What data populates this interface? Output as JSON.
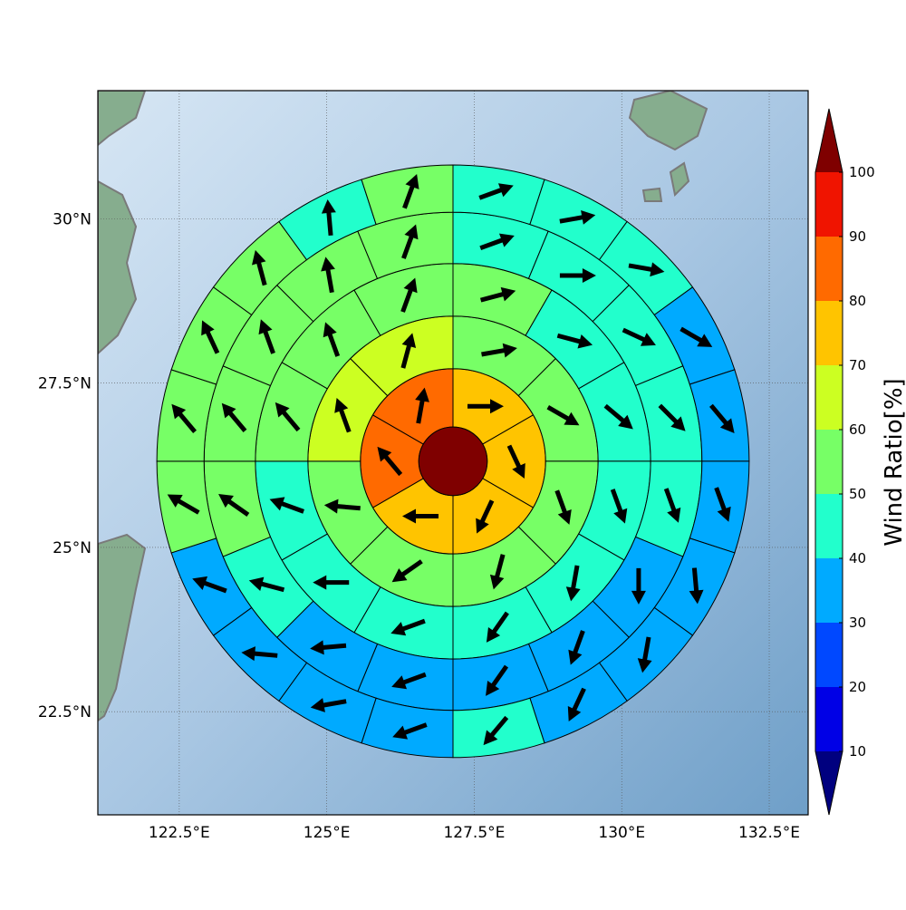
{
  "chart_data": {
    "type": "polar-sector-map",
    "colorbar_label": "Wind Ratio[%]",
    "levels": [
      10,
      20,
      30,
      40,
      50,
      60,
      70,
      80,
      90,
      100
    ],
    "level_colors": [
      "#00007f",
      "#0000e6",
      "#0048ff",
      "#00aaff",
      "#22ffcc",
      "#77ff66",
      "#ccff22",
      "#ffc400",
      "#ff6a00",
      "#f01400",
      "#7f0000"
    ],
    "xlim": [
      121.12,
      133.16
    ],
    "ylim": [
      20.93,
      31.95
    ],
    "xticks": [
      {
        "value": 122.5,
        "label": "122.5°E"
      },
      {
        "value": 125,
        "label": "125°E"
      },
      {
        "value": 127.5,
        "label": "127.5°E"
      },
      {
        "value": 130,
        "label": "130°E"
      },
      {
        "value": 132.5,
        "label": "132.5°E"
      }
    ],
    "yticks": [
      {
        "value": 22.5,
        "label": "22.5°N"
      },
      {
        "value": 25,
        "label": "25°N"
      },
      {
        "value": 27.5,
        "label": "27.5°N"
      },
      {
        "value": 30,
        "label": "30°N"
      }
    ],
    "grid": true,
    "center": {
      "lon": 127.14,
      "lat": 26.31,
      "radius": 0.58,
      "value": 105
    },
    "rings": [
      {
        "outer_radius": 1.57,
        "values": [
          75,
          75,
          75,
          75,
          85,
          85
        ],
        "directions": [
          90,
          155,
          205,
          270,
          320,
          10
        ]
      },
      {
        "outer_radius": 2.46,
        "values": [
          55,
          55,
          55,
          55,
          55,
          55,
          65,
          65
        ],
        "directions": [
          80,
          120,
          160,
          195,
          235,
          275,
          340,
          15
        ]
      },
      {
        "outer_radius": 3.35,
        "values": [
          55,
          45,
          45,
          45,
          45,
          45,
          45,
          45,
          45,
          55,
          55,
          55
        ],
        "directions": [
          75,
          105,
          130,
          160,
          190,
          215,
          250,
          270,
          290,
          320,
          340,
          20
        ]
      },
      {
        "outer_radius": 4.22,
        "values": [
          45,
          45,
          45,
          45,
          45,
          35,
          35,
          35,
          35,
          35,
          45,
          55,
          55,
          55,
          55,
          55
        ],
        "directions": [
          70,
          90,
          115,
          135,
          160,
          180,
          200,
          215,
          250,
          265,
          285,
          305,
          320,
          340,
          350,
          20
        ]
      },
      {
        "outer_radius": 5.02,
        "values": [
          45,
          45,
          45,
          35,
          35,
          35,
          35,
          35,
          35,
          45,
          35,
          35,
          35,
          35,
          55,
          55,
          55,
          55,
          45,
          55
        ],
        "directions": [
          70,
          80,
          100,
          120,
          140,
          160,
          175,
          190,
          205,
          220,
          250,
          260,
          275,
          290,
          300,
          320,
          335,
          345,
          355,
          20
        ]
      }
    ]
  }
}
